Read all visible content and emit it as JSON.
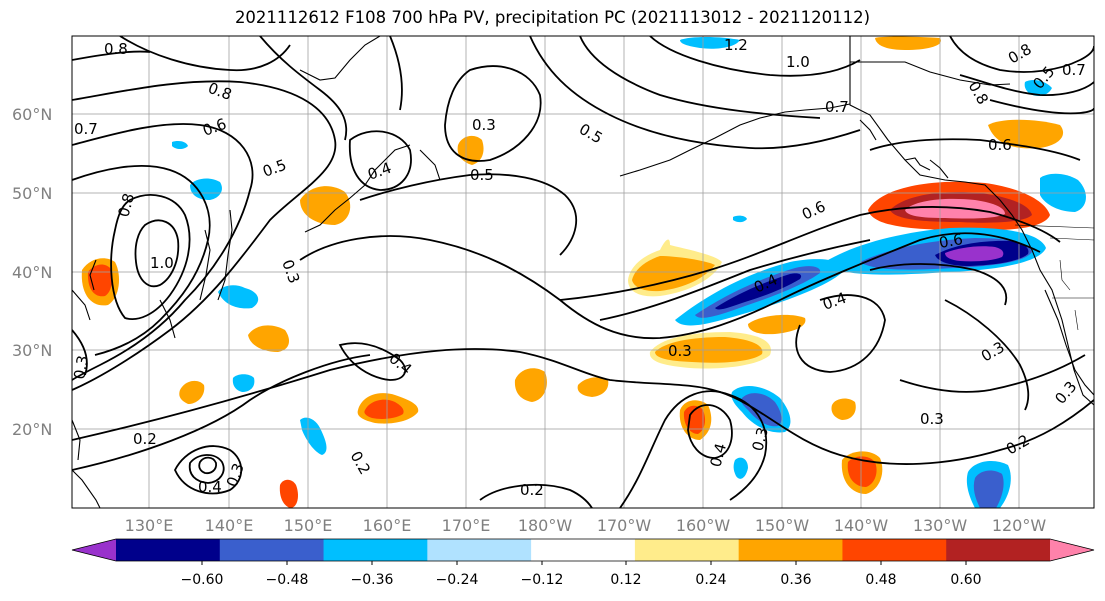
{
  "title": "2021112612 F108 700 hPa PV, precipitation PC (2021113012 - 2021120112)",
  "lat_labels": [
    "60°N",
    "50°N",
    "40°N",
    "30°N",
    "20°N"
  ],
  "lon_labels": [
    "130°E",
    "140°E",
    "150°E",
    "160°E",
    "170°E",
    "180°W",
    "170°W",
    "160°W",
    "150°W",
    "140°W",
    "130°W",
    "120°W"
  ],
  "colorbar": {
    "ticks": [
      "−0.60",
      "−0.48",
      "−0.36",
      "−0.24",
      "−0.12",
      "0.12",
      "0.24",
      "0.36",
      "0.48",
      "0.60"
    ],
    "colors": [
      "#9932CC",
      "#00008B",
      "#3A5FCD",
      "#00BFFF",
      "#B0E2FF",
      "#FFFFFF",
      "#FFEC8B",
      "#FFA500",
      "#FF4500",
      "#B22222",
      "#FF82AB"
    ]
  },
  "contour_labels": [
    "0.8",
    "1.2",
    "1.0",
    "0.8",
    "0.7",
    "0.8",
    "0.5",
    "0.7",
    "0.8",
    "0.3",
    "0.5",
    "0.7",
    "0.6",
    "0.5",
    "0.4",
    "0.5",
    "0.6",
    "0.6",
    "1.0",
    "0.8",
    "0.3",
    "0.4",
    "0.4",
    "0.4",
    "0.3",
    "0.3",
    "0.4",
    "0.2",
    "0.3",
    "0.2",
    "0.4",
    "0.3",
    "0.2",
    "0.3",
    "0.2",
    "0.3",
    "0.3",
    "0.6"
  ]
}
